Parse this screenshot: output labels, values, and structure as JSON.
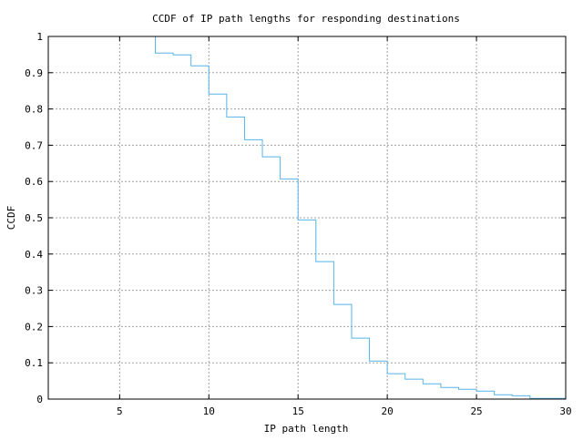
{
  "chart_data": {
    "type": "line",
    "step": true,
    "title": "CCDF of IP path lengths for responding destinations",
    "xlabel": "IP path length",
    "ylabel": "CCDF",
    "xlim": [
      1,
      30
    ],
    "ylim": [
      0,
      1
    ],
    "xticks": [
      5,
      10,
      15,
      20,
      25,
      30
    ],
    "yticks": [
      0,
      0.1,
      0.2,
      0.3,
      0.4,
      0.5,
      0.6,
      0.7,
      0.8,
      0.9,
      1
    ],
    "ytick_labels": [
      "0",
      "0.1",
      "0.2",
      "0.3",
      "0.4",
      "0.5",
      "0.6",
      "0.7",
      "0.8",
      "0.9",
      "1"
    ],
    "grid": true,
    "line_color": "#56b4e9",
    "x": [
      6,
      7,
      8,
      9,
      10,
      11,
      12,
      13,
      14,
      15,
      16,
      17,
      18,
      19,
      20,
      21,
      22,
      23,
      24,
      25,
      26,
      27,
      28,
      29
    ],
    "y": [
      1.0,
      0.954,
      0.949,
      0.919,
      0.841,
      0.778,
      0.715,
      0.668,
      0.607,
      0.494,
      0.379,
      0.261,
      0.168,
      0.105,
      0.07,
      0.055,
      0.042,
      0.032,
      0.027,
      0.022,
      0.012,
      0.009,
      0.002,
      0.002
    ]
  }
}
